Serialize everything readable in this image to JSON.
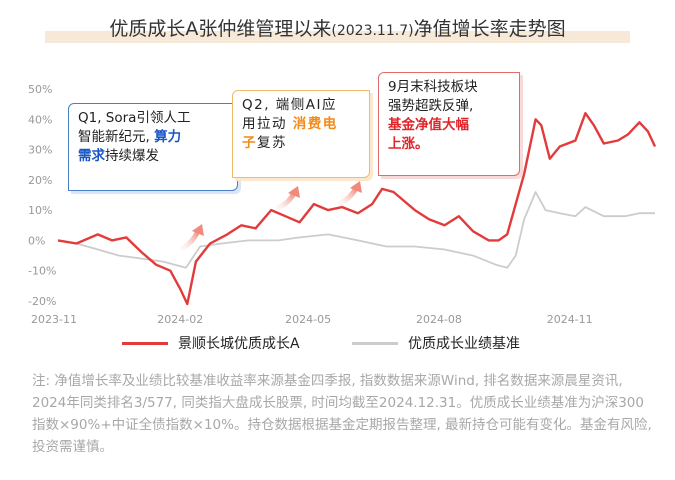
{
  "header": {
    "title_main": "优质成长A张仲维管理以来",
    "title_date": "(2023.11.7)",
    "title_tail": "净值增长率走势图"
  },
  "chart_data": {
    "type": "line",
    "x_ticks": [
      "2023-11",
      "2024-02",
      "2024-05",
      "2024-08",
      "2024-11"
    ],
    "y_ticks": [
      "50%",
      "40%",
      "30%",
      "20%",
      "10%",
      "0%",
      "-10%",
      "-20%"
    ],
    "ylim": [
      -22,
      55
    ],
    "grid": false,
    "series": [
      {
        "name": "景顺长城优质成长A",
        "color": "#e23b3b",
        "points": [
          [
            "2023-11-07",
            0
          ],
          [
            "2023-11-20",
            -1
          ],
          [
            "2023-12-05",
            2
          ],
          [
            "2023-12-15",
            0
          ],
          [
            "2023-12-25",
            1
          ],
          [
            "2024-01-05",
            -4
          ],
          [
            "2024-01-15",
            -8
          ],
          [
            "2024-01-25",
            -10
          ],
          [
            "2024-02-01",
            -16
          ],
          [
            "2024-02-06",
            -21
          ],
          [
            "2024-02-12",
            -7
          ],
          [
            "2024-02-22",
            -1
          ],
          [
            "2024-03-05",
            2
          ],
          [
            "2024-03-15",
            5
          ],
          [
            "2024-03-25",
            4
          ],
          [
            "2024-04-05",
            10
          ],
          [
            "2024-04-15",
            8
          ],
          [
            "2024-04-25",
            6
          ],
          [
            "2024-05-05",
            12
          ],
          [
            "2024-05-15",
            10
          ],
          [
            "2024-05-25",
            11
          ],
          [
            "2024-06-05",
            9
          ],
          [
            "2024-06-15",
            12
          ],
          [
            "2024-06-22",
            17
          ],
          [
            "2024-06-30",
            16
          ],
          [
            "2024-07-05",
            14
          ],
          [
            "2024-07-15",
            10
          ],
          [
            "2024-07-25",
            7
          ],
          [
            "2024-08-05",
            5
          ],
          [
            "2024-08-15",
            8
          ],
          [
            "2024-08-25",
            3
          ],
          [
            "2024-09-05",
            0
          ],
          [
            "2024-09-12",
            0
          ],
          [
            "2024-09-18",
            2
          ],
          [
            "2024-09-24",
            12
          ],
          [
            "2024-09-30",
            22
          ],
          [
            "2024-10-08",
            40
          ],
          [
            "2024-10-12",
            38
          ],
          [
            "2024-10-18",
            27
          ],
          [
            "2024-10-25",
            31
          ],
          [
            "2024-11-05",
            33
          ],
          [
            "2024-11-12",
            42
          ],
          [
            "2024-11-18",
            38
          ],
          [
            "2024-11-25",
            32
          ],
          [
            "2024-12-05",
            33
          ],
          [
            "2024-12-12",
            35
          ],
          [
            "2024-12-20",
            39
          ],
          [
            "2024-12-26",
            36
          ],
          [
            "2024-12-31",
            31
          ]
        ]
      },
      {
        "name": "优质成长业绩基准",
        "color": "#cccccc",
        "points": [
          [
            "2023-11-07",
            0
          ],
          [
            "2023-11-20",
            -1
          ],
          [
            "2023-12-05",
            -3
          ],
          [
            "2023-12-20",
            -5
          ],
          [
            "2024-01-05",
            -6
          ],
          [
            "2024-01-20",
            -7
          ],
          [
            "2024-02-05",
            -9
          ],
          [
            "2024-02-15",
            -2
          ],
          [
            "2024-03-01",
            -1
          ],
          [
            "2024-03-20",
            0
          ],
          [
            "2024-04-10",
            0
          ],
          [
            "2024-04-25",
            1
          ],
          [
            "2024-05-15",
            2
          ],
          [
            "2024-06-05",
            0
          ],
          [
            "2024-06-25",
            -2
          ],
          [
            "2024-07-15",
            -2
          ],
          [
            "2024-08-05",
            -3
          ],
          [
            "2024-08-25",
            -5
          ],
          [
            "2024-09-10",
            -8
          ],
          [
            "2024-09-18",
            -9
          ],
          [
            "2024-09-24",
            -5
          ],
          [
            "2024-09-30",
            7
          ],
          [
            "2024-10-08",
            16
          ],
          [
            "2024-10-15",
            10
          ],
          [
            "2024-10-25",
            9
          ],
          [
            "2024-11-05",
            8
          ],
          [
            "2024-11-12",
            11
          ],
          [
            "2024-11-25",
            8
          ],
          [
            "2024-12-10",
            8
          ],
          [
            "2024-12-20",
            9
          ],
          [
            "2024-12-31",
            9
          ]
        ]
      }
    ]
  },
  "annotations": {
    "q1": {
      "line1": "Q1, Sora引领人工",
      "line2a": "智能新纪元, ",
      "line2b": "算力",
      "line3a": "需求",
      "line3b": "持续爆发"
    },
    "q2": {
      "line1": "Q2, 端侧AI应",
      "line2a": "用拉动",
      "line2b": "消费电",
      "line3a": "子",
      "line3b": "复苏"
    },
    "q3": {
      "line1": "9月末科技板块",
      "line2": "强势超跌反弹,",
      "line3": "基金净值大幅",
      "line4": "上涨。"
    }
  },
  "legend": {
    "fund": "景顺长城优质成长A",
    "benchmark": "优质成长业绩基准"
  },
  "footnote": "注: 净值增长率及业绩比较基准收益率来源基金四季报, 指数数据来源Wind, 排名数据来源晨星资讯, 2024年同类排名3/577, 同类指大盘成长股票, 时间均截至2024.12.31。优质成长业绩基准为沪深300指数×90%+中证全债指数×10%。持仓数据根据基金定期报告整理, 最新持仓可能有变化。基金有风险, 投资需谨慎。"
}
